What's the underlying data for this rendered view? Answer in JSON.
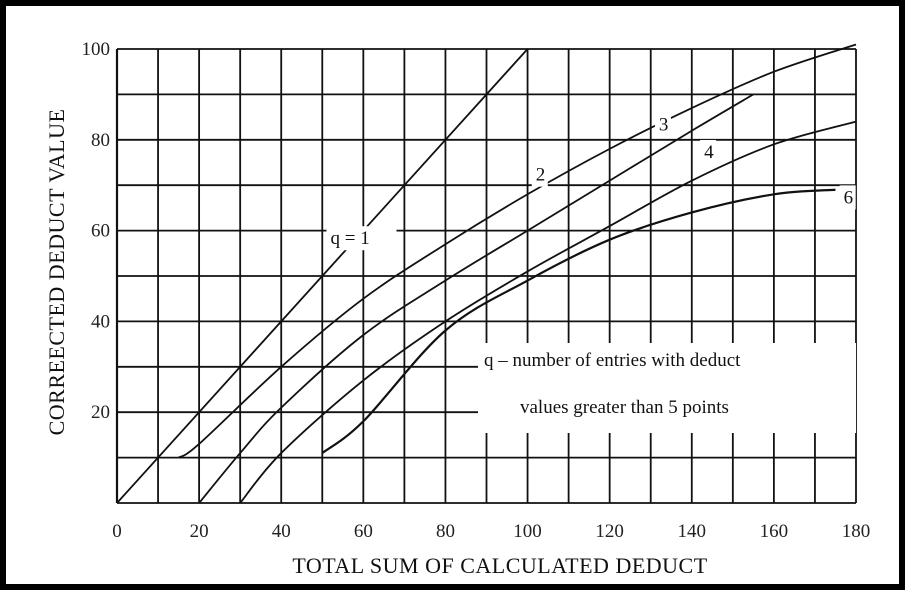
{
  "chart_data": {
    "type": "line",
    "xlabel": "TOTAL SUM OF CALCULATED DEDUCT",
    "ylabel": "CORREECTED DEDUCT VALUE",
    "xlim": [
      0,
      180
    ],
    "ylim": [
      0,
      100
    ],
    "x_ticks": [
      0,
      20,
      40,
      60,
      80,
      100,
      120,
      140,
      160,
      180
    ],
    "y_ticks": [
      20,
      40,
      60,
      80,
      100
    ],
    "grid": true,
    "series": [
      {
        "name": "q = 1",
        "x": [
          0,
          100
        ],
        "y": [
          0,
          100
        ]
      },
      {
        "name": "2",
        "x": [
          15,
          20,
          40,
          60,
          80,
          100,
          120,
          140,
          160,
          180
        ],
        "y": [
          10,
          13,
          30,
          45,
          57,
          68,
          78,
          87,
          95,
          101
        ]
      },
      {
        "name": "3",
        "x": [
          20,
          30,
          40,
          60,
          80,
          100,
          120,
          140,
          155
        ],
        "y": [
          0,
          11,
          21,
          37,
          49,
          60,
          71,
          82,
          90
        ]
      },
      {
        "name": "4",
        "x": [
          30,
          40,
          60,
          80,
          100,
          120,
          140,
          160,
          180
        ],
        "y": [
          0,
          11,
          27,
          40,
          51,
          61,
          71,
          79,
          84
        ]
      },
      {
        "name": "6",
        "x": [
          50,
          60,
          80,
          100,
          120,
          140,
          160,
          175
        ],
        "y": [
          11,
          18,
          38,
          49,
          58,
          64,
          68,
          69
        ]
      }
    ],
    "annotations": [
      "q = 1",
      "2",
      "3",
      "4",
      "6",
      "q – number of entries with deduct",
      "values greater than 5 points"
    ]
  }
}
